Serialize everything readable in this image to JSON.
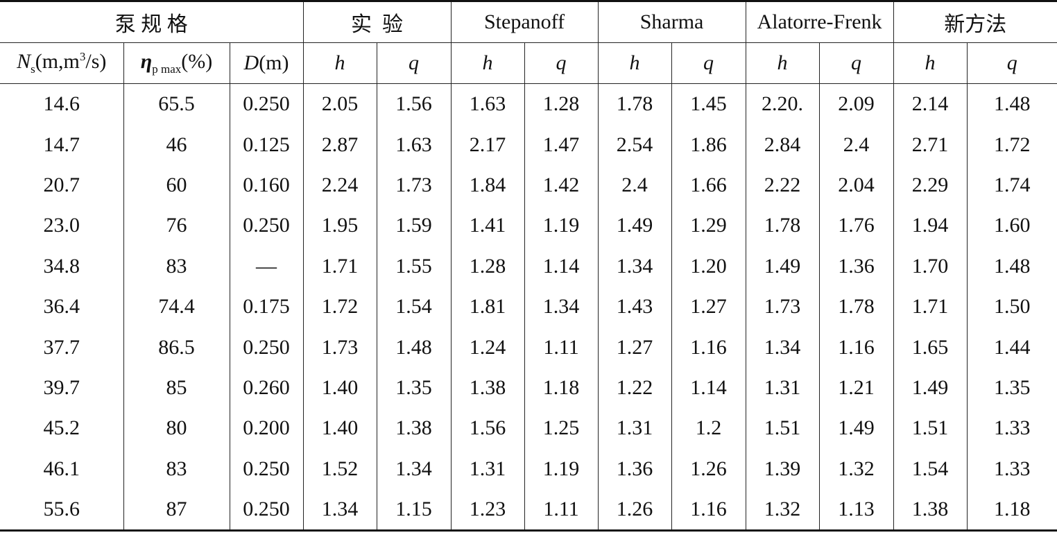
{
  "table": {
    "header_groups": [
      "泵 规 格",
      "实  验",
      "Stepanoff",
      "Sharma",
      "Alatorre-Frenk",
      "新方法"
    ],
    "header_cols": [
      {
        "parts": [
          "N",
          "s",
          "(m,m",
          "3",
          "/s)"
        ]
      },
      {
        "parts": [
          "η",
          "p max",
          "(%)"
        ]
      },
      {
        "parts": [
          "D",
          "(m)"
        ]
      },
      {
        "parts": [
          "h"
        ]
      },
      {
        "parts": [
          "q"
        ]
      },
      {
        "parts": [
          "h"
        ]
      },
      {
        "parts": [
          "q"
        ]
      },
      {
        "parts": [
          "h"
        ]
      },
      {
        "parts": [
          "q"
        ]
      },
      {
        "parts": [
          "h"
        ]
      },
      {
        "parts": [
          "q"
        ]
      },
      {
        "parts": [
          "h"
        ]
      },
      {
        "parts": [
          "q"
        ]
      }
    ],
    "rows": [
      [
        "14.6",
        "65.5",
        "0.250",
        "2.05",
        "1.56",
        "1.63",
        "1.28",
        "1.78",
        "1.45",
        "2.20.",
        "2.09",
        "2.14",
        "1.48"
      ],
      [
        "14.7",
        "46",
        "0.125",
        "2.87",
        "1.63",
        "2.17",
        "1.47",
        "2.54",
        "1.86",
        "2.84",
        "2.4",
        "2.71",
        "1.72"
      ],
      [
        "20.7",
        "60",
        "0.160",
        "2.24",
        "1.73",
        "1.84",
        "1.42",
        "2.4",
        "1.66",
        "2.22",
        "2.04",
        "2.29",
        "1.74"
      ],
      [
        "23.0",
        "76",
        "0.250",
        "1.95",
        "1.59",
        "1.41",
        "1.19",
        "1.49",
        "1.29",
        "1.78",
        "1.76",
        "1.94",
        "1.60"
      ],
      [
        "34.8",
        "83",
        "—",
        "1.71",
        "1.55",
        "1.28",
        "1.14",
        "1.34",
        "1.20",
        "1.49",
        "1.36",
        "1.70",
        "1.48"
      ],
      [
        "36.4",
        "74.4",
        "0.175",
        "1.72",
        "1.54",
        "1.81",
        "1.34",
        "1.43",
        "1.27",
        "1.73",
        "1.78",
        "1.71",
        "1.50"
      ],
      [
        "37.7",
        "86.5",
        "0.250",
        "1.73",
        "1.48",
        "1.24",
        "1.11",
        "1.27",
        "1.16",
        "1.34",
        "1.16",
        "1.65",
        "1.44"
      ],
      [
        "39.7",
        "85",
        "0.260",
        "1.40",
        "1.35",
        "1.38",
        "1.18",
        "1.22",
        "1.14",
        "1.31",
        "1.21",
        "1.49",
        "1.35"
      ],
      [
        "45.2",
        "80",
        "0.200",
        "1.40",
        "1.38",
        "1.56",
        "1.25",
        "1.31",
        "1.2",
        "1.51",
        "1.49",
        "1.51",
        "1.33"
      ],
      [
        "46.1",
        "83",
        "0.250",
        "1.52",
        "1.34",
        "1.31",
        "1.19",
        "1.36",
        "1.26",
        "1.39",
        "1.32",
        "1.54",
        "1.33"
      ],
      [
        "55.6",
        "87",
        "0.250",
        "1.34",
        "1.15",
        "1.23",
        "1.11",
        "1.26",
        "1.16",
        "1.32",
        "1.13",
        "1.38",
        "1.18"
      ]
    ]
  }
}
